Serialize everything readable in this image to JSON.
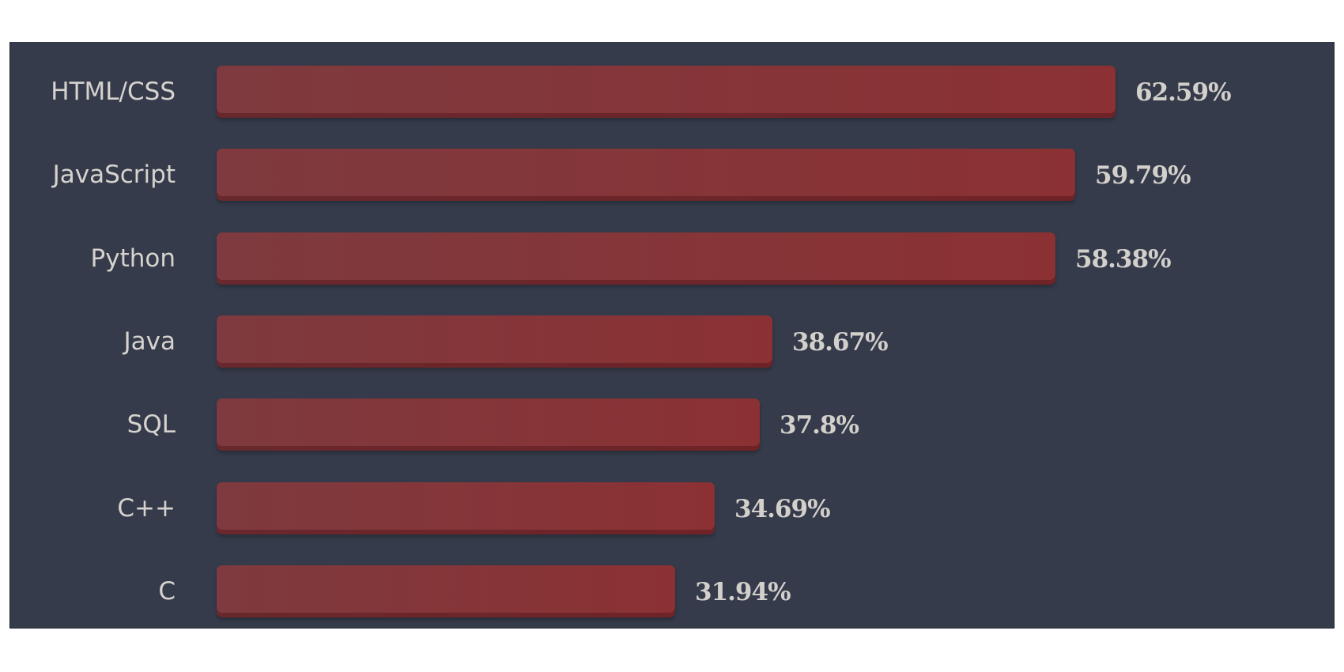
{
  "chart_data": {
    "type": "bar",
    "orientation": "horizontal",
    "title": "",
    "xlabel": "",
    "ylabel": "",
    "categories": [
      "HTML/CSS",
      "JavaScript",
      "Python",
      "Java",
      "SQL",
      "C++",
      "C"
    ],
    "values": [
      62.59,
      59.79,
      58.38,
      38.67,
      37.8,
      34.69,
      31.94
    ],
    "value_labels": [
      "62.59%",
      "59.79%",
      "58.38%",
      "38.67%",
      "37.8%",
      "34.69%",
      "31.94%"
    ],
    "unit": "%",
    "grid": false,
    "legend": null,
    "colors": {
      "background": "#353b4a",
      "bar": "#8b3134",
      "text": "#d6d3cf"
    }
  },
  "rows": [
    {
      "label": "HTML/CSS",
      "value": "62.59%"
    },
    {
      "label": "JavaScript",
      "value": "59.79%"
    },
    {
      "label": "Python",
      "value": "58.38%"
    },
    {
      "label": "Java",
      "value": "38.67%"
    },
    {
      "label": "SQL",
      "value": "37.8%"
    },
    {
      "label": "C++",
      "value": "34.69%"
    },
    {
      "label": "C",
      "value": "31.94%"
    }
  ]
}
